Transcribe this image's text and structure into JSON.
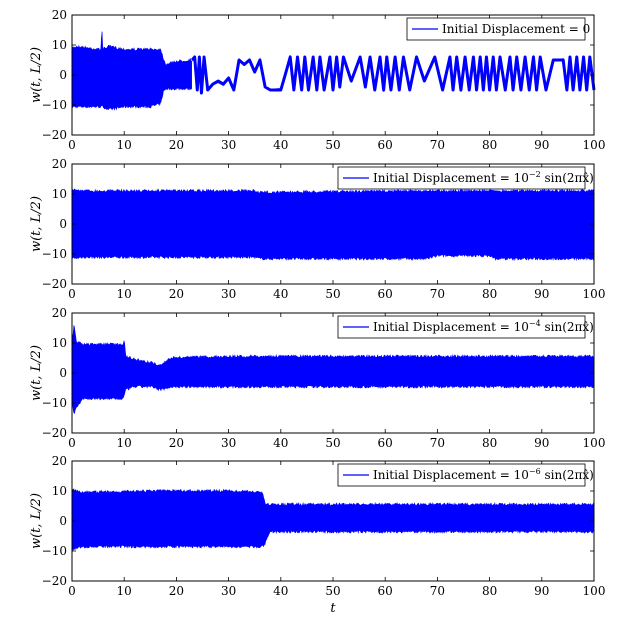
{
  "chart_data": {
    "type": "line",
    "xlabel": "t",
    "ylabel": "w(t, L/2)",
    "xlim": [
      0,
      100
    ],
    "ylim": [
      -20,
      20
    ],
    "xticks": [
      "0",
      "10",
      "20",
      "30",
      "40",
      "50",
      "60",
      "70",
      "80",
      "90",
      "100"
    ],
    "yticks": [
      "20",
      "10",
      "0",
      "−10",
      "−20"
    ],
    "color": "#0000ff",
    "legend_position": "top-right",
    "panels": [
      {
        "legend": {
          "prefix": "Initial Displacement = 0",
          "exponent": "",
          "suffix": ""
        },
        "envelope": [
          [
            0,
            -11,
            9.5
          ],
          [
            1,
            -11,
            10
          ],
          [
            5,
            -11,
            9
          ],
          [
            5.6,
            -11,
            9
          ],
          [
            5.7,
            -11,
            18
          ],
          [
            5.9,
            -11,
            9
          ],
          [
            7,
            -12,
            10
          ],
          [
            10,
            -11,
            9
          ],
          [
            15,
            -11,
            9
          ],
          [
            17,
            -10,
            9
          ],
          [
            17.5,
            -6,
            6
          ],
          [
            18,
            -5,
            4
          ],
          [
            20,
            -5,
            5
          ],
          [
            23,
            -5,
            5.5
          ]
        ],
        "trace": [
          [
            23,
            5
          ],
          [
            23.5,
            6
          ],
          [
            24,
            -5
          ],
          [
            24.4,
            6
          ],
          [
            24.8,
            -6
          ],
          [
            25.3,
            6
          ],
          [
            26,
            -5
          ],
          [
            27,
            -3
          ],
          [
            28,
            -2
          ],
          [
            29,
            -3
          ],
          [
            30,
            -1
          ],
          [
            31,
            -5
          ],
          [
            32,
            5
          ],
          [
            33,
            3.5
          ],
          [
            34,
            5
          ],
          [
            35,
            1
          ],
          [
            36,
            5
          ],
          [
            37,
            -4
          ],
          [
            38,
            -5
          ],
          [
            40,
            -5
          ],
          [
            41,
            1
          ],
          [
            41.8,
            6
          ],
          [
            42.5,
            -5
          ],
          [
            43.2,
            6
          ],
          [
            44,
            -5
          ],
          [
            44.6,
            6
          ],
          [
            45.3,
            -5
          ],
          [
            46.2,
            6
          ],
          [
            46.9,
            -5
          ],
          [
            47.5,
            6
          ],
          [
            48.3,
            -5
          ],
          [
            49.4,
            6
          ],
          [
            50,
            -5
          ],
          [
            50.7,
            6
          ],
          [
            51.3,
            -4
          ],
          [
            52,
            6
          ],
          [
            53.5,
            -2
          ],
          [
            55.2,
            6
          ],
          [
            56.2,
            -4
          ],
          [
            57.1,
            6
          ],
          [
            58,
            -5
          ],
          [
            59,
            6
          ],
          [
            59.7,
            -5
          ],
          [
            60.3,
            6
          ],
          [
            61.1,
            -5
          ],
          [
            61.9,
            6
          ],
          [
            62.7,
            -5
          ],
          [
            63.5,
            6
          ],
          [
            64.7,
            -5
          ],
          [
            66,
            6
          ],
          [
            67.5,
            -2
          ],
          [
            69.5,
            6
          ],
          [
            71,
            -5
          ],
          [
            72.4,
            6
          ],
          [
            73,
            -5
          ],
          [
            73.7,
            6
          ],
          [
            74.5,
            -5
          ],
          [
            75.3,
            6
          ],
          [
            76.1,
            -5
          ],
          [
            76.9,
            6
          ],
          [
            77.5,
            -5
          ],
          [
            78.2,
            6
          ],
          [
            78.8,
            -5
          ],
          [
            79.4,
            6
          ],
          [
            80,
            -5
          ],
          [
            80.7,
            6
          ],
          [
            81.3,
            -5
          ],
          [
            82,
            6
          ],
          [
            83,
            -5
          ],
          [
            83.9,
            6
          ],
          [
            84.5,
            -5
          ],
          [
            85.2,
            6
          ],
          [
            86,
            -5
          ],
          [
            86.8,
            6
          ],
          [
            87.6,
            -5
          ],
          [
            88.4,
            6
          ],
          [
            89,
            -5
          ],
          [
            89.7,
            6
          ],
          [
            90.8,
            -5
          ],
          [
            92.2,
            5
          ],
          [
            94.1,
            5
          ],
          [
            94.8,
            -5
          ],
          [
            95.4,
            6
          ],
          [
            96,
            -5
          ],
          [
            96.7,
            6
          ],
          [
            97.3,
            -5
          ],
          [
            98,
            6
          ],
          [
            98.6,
            -5
          ],
          [
            99.2,
            6
          ],
          [
            100,
            -5
          ]
        ]
      },
      {
        "legend": {
          "prefix": "Initial Displacement = 10",
          "exponent": "−2",
          "suffix": " sin(2πx̂)"
        },
        "envelope": [
          [
            0,
            -12,
            12
          ],
          [
            2,
            -11.5,
            11.5
          ],
          [
            35,
            -11.5,
            11.5
          ],
          [
            36,
            -12,
            11
          ],
          [
            68,
            -12,
            11.5
          ],
          [
            70,
            -11,
            11.5
          ],
          [
            80,
            -11,
            11.5
          ],
          [
            81,
            -12,
            11.5
          ],
          [
            100,
            -12,
            11.5
          ]
        ],
        "trace": []
      },
      {
        "legend": {
          "prefix": "Initial Displacement = 10",
          "exponent": "−4",
          "suffix": " sin(2πx̂)"
        },
        "envelope": [
          [
            0,
            -10,
            10
          ],
          [
            0.4,
            -14,
            17
          ],
          [
            0.8,
            -12,
            11
          ],
          [
            2,
            -9,
            10
          ],
          [
            9.8,
            -9,
            10
          ],
          [
            10,
            -8,
            12
          ],
          [
            10.3,
            -6,
            6
          ],
          [
            12,
            -5,
            5
          ],
          [
            15,
            -5,
            4
          ],
          [
            17,
            -6,
            3
          ],
          [
            19,
            -5,
            5.5
          ],
          [
            30,
            -5,
            6
          ],
          [
            100,
            -5,
            6
          ]
        ],
        "trace": []
      },
      {
        "legend": {
          "prefix": "Initial Displacement = 10",
          "exponent": "−6",
          "suffix": " sin(2πx̂)"
        },
        "envelope": [
          [
            0,
            -10,
            11
          ],
          [
            2,
            -9,
            10
          ],
          [
            17,
            -9,
            10.5
          ],
          [
            30,
            -9,
            10.5
          ],
          [
            36.5,
            -9,
            10
          ],
          [
            37,
            -8,
            6
          ],
          [
            38,
            -4,
            6
          ],
          [
            100,
            -4,
            6
          ]
        ],
        "trace": []
      }
    ]
  }
}
